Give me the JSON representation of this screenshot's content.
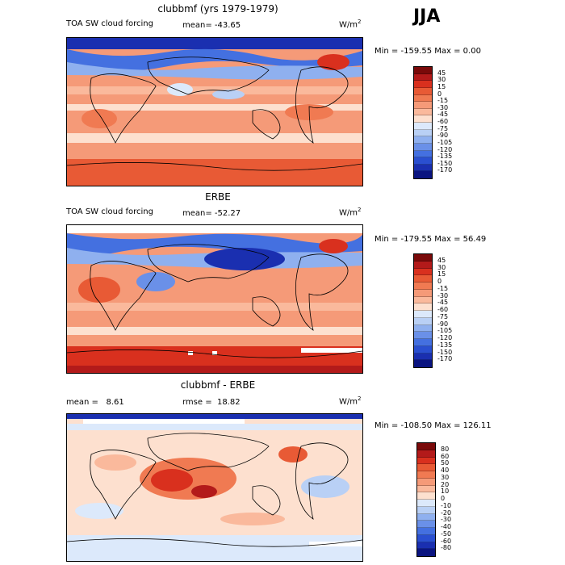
{
  "season": "JJA",
  "panels": [
    {
      "title": "clubbmf (yrs 1979-1979)",
      "variable": "TOA SW cloud forcing",
      "stat_text": "mean= -43.65",
      "units_base": "W/m",
      "units_exp": "2",
      "minmax_text": "Min = -159.55 Max =    0.00",
      "colorbar_labels": [
        "45",
        "30",
        "15",
        "0",
        "-15",
        "-30",
        "-45",
        "-60",
        "-75",
        "-90",
        "-105",
        "-120",
        "-135",
        "-150",
        "-170"
      ]
    },
    {
      "title": "ERBE",
      "variable": "TOA SW cloud forcing",
      "stat_text": "mean= -52.27",
      "units_base": "W/m",
      "units_exp": "2",
      "minmax_text": "Min = -179.55 Max =  56.49",
      "colorbar_labels": [
        "45",
        "30",
        "15",
        "0",
        "-15",
        "-30",
        "-45",
        "-60",
        "-75",
        "-90",
        "-105",
        "-120",
        "-135",
        "-150",
        "-170"
      ]
    },
    {
      "title": "clubbmf - ERBE",
      "stat_text": "mean =   8.61",
      "rmse_text": "rmse =  18.82",
      "units_base": "W/m",
      "units_exp": "2",
      "minmax_text": "Min = -108.50 Max = 126.11",
      "colorbar_labels": [
        "80",
        "60",
        "50",
        "40",
        "30",
        "20",
        "10",
        "0",
        "-10",
        "-20",
        "-30",
        "-40",
        "-50",
        "-60",
        "-80"
      ]
    }
  ],
  "colors": {
    "scale_main": [
      "#7a0a0a",
      "#b31a1a",
      "#d9301e",
      "#e85a35",
      "#f07a52",
      "#f59a78",
      "#fab99c",
      "#fde0cf",
      "#dce9fb",
      "#b9d0f5",
      "#8fb0ef",
      "#6a90e8",
      "#4470e0",
      "#2a4fd0",
      "#1a2fb0",
      "#0a1480"
    ],
    "scale_diff": [
      "#7a0a0a",
      "#b31a1a",
      "#d9301e",
      "#e85a35",
      "#f07a52",
      "#f59a78",
      "#fab99c",
      "#fde0cf",
      "#dce9fb",
      "#b9d0f5",
      "#8fb0ef",
      "#6a90e8",
      "#4470e0",
      "#2a4fd0",
      "#1a2fb0",
      "#0a1480"
    ]
  }
}
